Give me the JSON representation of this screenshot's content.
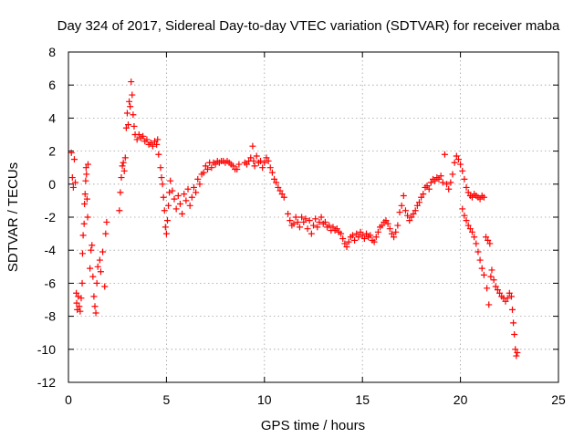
{
  "chart_data": {
    "type": "scatter",
    "title": "Day 324 of 2017, Sidereal Day-to-day VTEC variation (SDTVAR) for receiver maba",
    "xlabel": "GPS time / hours",
    "ylabel": "SDTVAR / TECUs",
    "xlim": [
      0,
      25
    ],
    "ylim": [
      -12,
      8
    ],
    "xticks": [
      0,
      5,
      10,
      15,
      20,
      25
    ],
    "yticks": [
      -12,
      -10,
      -8,
      -6,
      -4,
      -2,
      0,
      2,
      4,
      6,
      8
    ],
    "grid": true,
    "marker": "+",
    "color": "#ff0000",
    "series": [
      {
        "name": "SDTVAR",
        "points": [
          [
            0.15,
            1.9
          ],
          [
            0.2,
            0.4
          ],
          [
            0.25,
            -0.2
          ],
          [
            0.3,
            1.5
          ],
          [
            0.35,
            0.1
          ],
          [
            0.4,
            -6.6
          ],
          [
            0.42,
            -7.2
          ],
          [
            0.45,
            -7.6
          ],
          [
            0.5,
            -6.8
          ],
          [
            0.55,
            -7.4
          ],
          [
            0.6,
            -7.7
          ],
          [
            0.65,
            -6.9
          ],
          [
            0.7,
            -6.0
          ],
          [
            0.72,
            -4.2
          ],
          [
            0.75,
            -3.1
          ],
          [
            0.8,
            -2.4
          ],
          [
            0.82,
            -1.2
          ],
          [
            0.85,
            -0.6
          ],
          [
            0.88,
            0.2
          ],
          [
            0.9,
            1.0
          ],
          [
            0.92,
            0.6
          ],
          [
            0.95,
            -0.9
          ],
          [
            0.98,
            -2.0
          ],
          [
            1.0,
            1.2
          ],
          [
            1.1,
            -5.1
          ],
          [
            1.15,
            -4.0
          ],
          [
            1.2,
            -3.7
          ],
          [
            1.25,
            -5.6
          ],
          [
            1.3,
            -6.8
          ],
          [
            1.35,
            -7.4
          ],
          [
            1.4,
            -7.8
          ],
          [
            1.45,
            -6.0
          ],
          [
            1.5,
            -5.0
          ],
          [
            1.6,
            -4.6
          ],
          [
            1.65,
            -5.3
          ],
          [
            1.75,
            -4.1
          ],
          [
            1.85,
            -6.2
          ],
          [
            1.9,
            -3.0
          ],
          [
            1.95,
            -2.3
          ],
          [
            2.6,
            -1.6
          ],
          [
            2.65,
            -0.5
          ],
          [
            2.7,
            0.4
          ],
          [
            2.75,
            1.1
          ],
          [
            2.8,
            1.3
          ],
          [
            2.85,
            0.8
          ],
          [
            2.9,
            1.6
          ],
          [
            2.95,
            3.4
          ],
          [
            3.0,
            4.3
          ],
          [
            3.05,
            3.6
          ],
          [
            3.1,
            5.0
          ],
          [
            3.15,
            4.7
          ],
          [
            3.2,
            6.2
          ],
          [
            3.25,
            5.4
          ],
          [
            3.3,
            4.2
          ],
          [
            3.35,
            3.5
          ],
          [
            3.4,
            3.0
          ],
          [
            3.5,
            2.7
          ],
          [
            3.6,
            3.0
          ],
          [
            3.7,
            2.8
          ],
          [
            3.8,
            2.9
          ],
          [
            3.9,
            2.6
          ],
          [
            4.0,
            2.7
          ],
          [
            4.1,
            2.4
          ],
          [
            4.2,
            2.5
          ],
          [
            4.3,
            2.3
          ],
          [
            4.4,
            2.6
          ],
          [
            4.5,
            2.4
          ],
          [
            4.55,
            2.7
          ],
          [
            4.6,
            1.8
          ],
          [
            4.7,
            1.0
          ],
          [
            4.75,
            0.4
          ],
          [
            4.8,
            0.0
          ],
          [
            4.85,
            -0.8
          ],
          [
            4.9,
            -1.6
          ],
          [
            4.95,
            -2.6
          ],
          [
            5.0,
            -3.0
          ],
          [
            5.05,
            -2.2
          ],
          [
            5.1,
            -1.3
          ],
          [
            5.15,
            -0.5
          ],
          [
            5.2,
            0.2
          ],
          [
            5.3,
            -0.4
          ],
          [
            5.4,
            -0.9
          ],
          [
            5.5,
            -1.5
          ],
          [
            5.6,
            -0.7
          ],
          [
            5.7,
            -1.2
          ],
          [
            5.8,
            -1.8
          ],
          [
            5.9,
            -0.6
          ],
          [
            6.0,
            -1.0
          ],
          [
            6.1,
            -0.3
          ],
          [
            6.2,
            -1.3
          ],
          [
            6.3,
            -0.8
          ],
          [
            6.4,
            -0.2
          ],
          [
            6.5,
            -0.5
          ],
          [
            6.6,
            0.3
          ],
          [
            6.7,
            0.0
          ],
          [
            6.8,
            0.6
          ],
          [
            6.9,
            0.7
          ],
          [
            7.0,
            1.1
          ],
          [
            7.1,
            0.9
          ],
          [
            7.2,
            1.3
          ],
          [
            7.3,
            1.0
          ],
          [
            7.4,
            1.3
          ],
          [
            7.5,
            1.2
          ],
          [
            7.6,
            1.4
          ],
          [
            7.7,
            1.3
          ],
          [
            7.8,
            1.4
          ],
          [
            7.9,
            1.4
          ],
          [
            8.0,
            1.3
          ],
          [
            8.1,
            1.4
          ],
          [
            8.2,
            1.3
          ],
          [
            8.3,
            1.2
          ],
          [
            8.4,
            1.1
          ],
          [
            8.5,
            0.9
          ],
          [
            8.6,
            0.9
          ],
          [
            8.7,
            1.2
          ],
          [
            9.0,
            1.3
          ],
          [
            9.1,
            1.2
          ],
          [
            9.2,
            1.4
          ],
          [
            9.3,
            1.6
          ],
          [
            9.4,
            2.3
          ],
          [
            9.45,
            1.4
          ],
          [
            9.5,
            1.1
          ],
          [
            9.6,
            1.7
          ],
          [
            9.7,
            1.3
          ],
          [
            9.8,
            1.4
          ],
          [
            9.9,
            1.0
          ],
          [
            10.0,
            1.3
          ],
          [
            10.1,
            1.6
          ],
          [
            10.2,
            1.4
          ],
          [
            10.3,
            1.0
          ],
          [
            10.4,
            0.7
          ],
          [
            10.5,
            0.3
          ],
          [
            10.6,
            0.1
          ],
          [
            10.7,
            -0.2
          ],
          [
            10.8,
            -0.4
          ],
          [
            10.9,
            -0.6
          ],
          [
            11.0,
            -0.8
          ],
          [
            11.2,
            -1.8
          ],
          [
            11.3,
            -2.2
          ],
          [
            11.4,
            -2.5
          ],
          [
            11.5,
            -2.4
          ],
          [
            11.6,
            -2.0
          ],
          [
            11.7,
            -2.3
          ],
          [
            11.8,
            -2.6
          ],
          [
            11.9,
            -2.0
          ],
          [
            12.0,
            -2.3
          ],
          [
            12.1,
            -2.1
          ],
          [
            12.2,
            -2.7
          ],
          [
            12.3,
            -2.2
          ],
          [
            12.4,
            -3.0
          ],
          [
            12.5,
            -2.5
          ],
          [
            12.6,
            -2.1
          ],
          [
            12.7,
            -2.6
          ],
          [
            12.8,
            -2.3
          ],
          [
            12.9,
            -2.0
          ],
          [
            13.0,
            -2.4
          ],
          [
            13.1,
            -2.3
          ],
          [
            13.2,
            -2.6
          ],
          [
            13.3,
            -2.5
          ],
          [
            13.4,
            -2.8
          ],
          [
            13.5,
            -2.6
          ],
          [
            13.6,
            -2.8
          ],
          [
            13.7,
            -2.7
          ],
          [
            13.8,
            -2.9
          ],
          [
            13.9,
            -3.0
          ],
          [
            14.0,
            -3.3
          ],
          [
            14.1,
            -3.6
          ],
          [
            14.2,
            -3.8
          ],
          [
            14.3,
            -3.5
          ],
          [
            14.4,
            -3.2
          ],
          [
            14.5,
            -3.1
          ],
          [
            14.6,
            -3.4
          ],
          [
            14.7,
            -3.0
          ],
          [
            14.8,
            -3.2
          ],
          [
            14.9,
            -2.9
          ],
          [
            15.0,
            -3.1
          ],
          [
            15.1,
            -3.3
          ],
          [
            15.2,
            -3.0
          ],
          [
            15.3,
            -3.2
          ],
          [
            15.4,
            -3.1
          ],
          [
            15.5,
            -3.4
          ],
          [
            15.6,
            -3.5
          ],
          [
            15.7,
            -3.2
          ],
          [
            15.8,
            -2.9
          ],
          [
            15.9,
            -2.6
          ],
          [
            16.0,
            -2.5
          ],
          [
            16.1,
            -2.3
          ],
          [
            16.2,
            -2.2
          ],
          [
            16.3,
            -2.4
          ],
          [
            16.4,
            -2.7
          ],
          [
            16.5,
            -3.0
          ],
          [
            16.6,
            -3.2
          ],
          [
            16.7,
            -2.9
          ],
          [
            16.8,
            -2.5
          ],
          [
            16.9,
            -1.7
          ],
          [
            17.0,
            -1.3
          ],
          [
            17.1,
            -0.7
          ],
          [
            17.2,
            -1.6
          ],
          [
            17.3,
            -1.9
          ],
          [
            17.4,
            -2.2
          ],
          [
            17.5,
            -2.0
          ],
          [
            17.6,
            -1.8
          ],
          [
            17.7,
            -1.6
          ],
          [
            17.8,
            -1.3
          ],
          [
            17.9,
            -1.1
          ],
          [
            18.0,
            -0.8
          ],
          [
            18.1,
            -0.6
          ],
          [
            18.2,
            -0.2
          ],
          [
            18.3,
            -0.1
          ],
          [
            18.4,
            -0.3
          ],
          [
            18.5,
            0.1
          ],
          [
            18.6,
            0.3
          ],
          [
            18.7,
            0.2
          ],
          [
            18.8,
            0.4
          ],
          [
            18.9,
            0.3
          ],
          [
            19.0,
            0.5
          ],
          [
            19.1,
            0.1
          ],
          [
            19.2,
            1.8
          ],
          [
            19.3,
            0.0
          ],
          [
            19.4,
            -0.3
          ],
          [
            19.5,
            0.1
          ],
          [
            19.6,
            0.6
          ],
          [
            19.7,
            1.3
          ],
          [
            19.8,
            1.7
          ],
          [
            19.9,
            1.5
          ],
          [
            20.0,
            1.2
          ],
          [
            20.1,
            0.8
          ],
          [
            20.2,
            0.3
          ],
          [
            20.3,
            -0.2
          ],
          [
            20.4,
            -0.5
          ],
          [
            20.5,
            -0.7
          ],
          [
            20.6,
            -0.8
          ],
          [
            20.7,
            -0.6
          ],
          [
            20.8,
            -0.7
          ],
          [
            20.9,
            -0.8
          ],
          [
            21.0,
            -0.9
          ],
          [
            21.1,
            -0.7
          ],
          [
            21.2,
            -0.8
          ],
          [
            20.1,
            -1.5
          ],
          [
            20.2,
            -1.9
          ],
          [
            20.3,
            -2.2
          ],
          [
            20.4,
            -2.5
          ],
          [
            20.5,
            -2.7
          ],
          [
            20.6,
            -2.9
          ],
          [
            20.7,
            -3.2
          ],
          [
            20.8,
            -3.6
          ],
          [
            20.9,
            -4.1
          ],
          [
            21.0,
            -4.6
          ],
          [
            21.1,
            -5.1
          ],
          [
            21.2,
            -5.5
          ],
          [
            21.3,
            -3.2
          ],
          [
            21.4,
            -3.4
          ],
          [
            21.5,
            -3.6
          ],
          [
            21.35,
            -6.3
          ],
          [
            21.45,
            -7.3
          ],
          [
            21.55,
            -5.6
          ],
          [
            21.6,
            -5.2
          ],
          [
            21.7,
            -5.8
          ],
          [
            21.8,
            -6.2
          ],
          [
            21.9,
            -6.4
          ],
          [
            22.0,
            -6.6
          ],
          [
            22.1,
            -6.8
          ],
          [
            22.2,
            -6.9
          ],
          [
            22.3,
            -7.1
          ],
          [
            22.4,
            -6.9
          ],
          [
            22.5,
            -6.6
          ],
          [
            22.6,
            -6.8
          ],
          [
            22.65,
            -7.6
          ],
          [
            22.7,
            -8.4
          ],
          [
            22.75,
            -9.1
          ],
          [
            22.8,
            -10.0
          ],
          [
            22.85,
            -10.4
          ],
          [
            22.9,
            -10.2
          ]
        ]
      }
    ]
  }
}
